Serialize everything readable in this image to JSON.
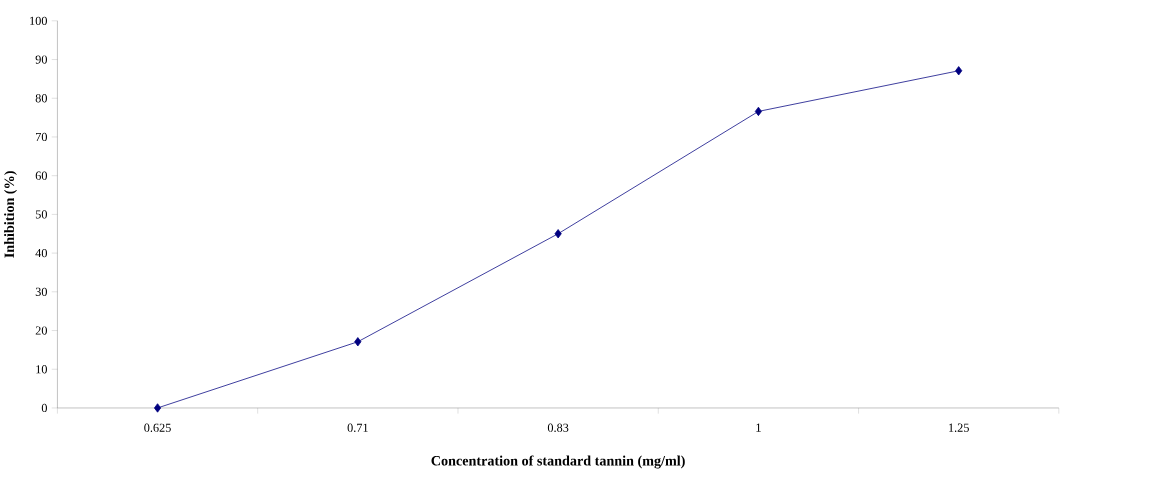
{
  "chart_data": {
    "type": "line",
    "xlabel": "Concentration of standard tannin (mg/ml)",
    "ylabel": "Inhibition (%)",
    "categories": [
      "0.625",
      "0.71",
      "0.83",
      "1",
      "1.25"
    ],
    "series": [
      {
        "color": "#000080",
        "values": [
          0,
          17.1,
          45,
          76.6,
          87.1
        ]
      }
    ],
    "ylim": [
      0,
      100
    ],
    "yticks": [
      0,
      10,
      20,
      30,
      40,
      50,
      60,
      70,
      80,
      90,
      100
    ],
    "marker": "diamond",
    "grid": false
  }
}
